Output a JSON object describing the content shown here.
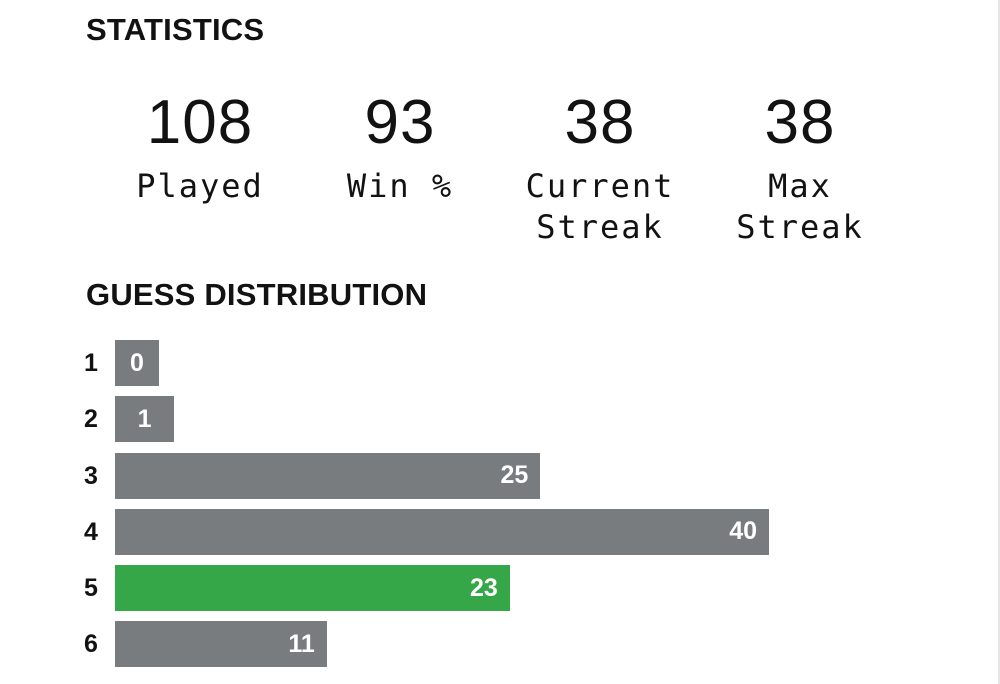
{
  "statistics": {
    "heading": "STATISTICS",
    "items": [
      {
        "value": "108",
        "label": "Played"
      },
      {
        "value": "93",
        "label": "Win %"
      },
      {
        "value": "38",
        "label": "Current\nStreak"
      },
      {
        "value": "38",
        "label": "Max\nStreak"
      }
    ]
  },
  "guess_distribution": {
    "heading": "GUESS DISTRIBUTION",
    "max_count": 40,
    "bar_color": "#787c7e",
    "highlight_color": "#36a748",
    "rows": [
      {
        "guess": "1",
        "count": 0,
        "highlight": false
      },
      {
        "guess": "2",
        "count": 1,
        "highlight": false
      },
      {
        "guess": "3",
        "count": 25,
        "highlight": false
      },
      {
        "guess": "4",
        "count": 40,
        "highlight": false
      },
      {
        "guess": "5",
        "count": 23,
        "highlight": true
      },
      {
        "guess": "6",
        "count": 11,
        "highlight": false
      }
    ]
  }
}
